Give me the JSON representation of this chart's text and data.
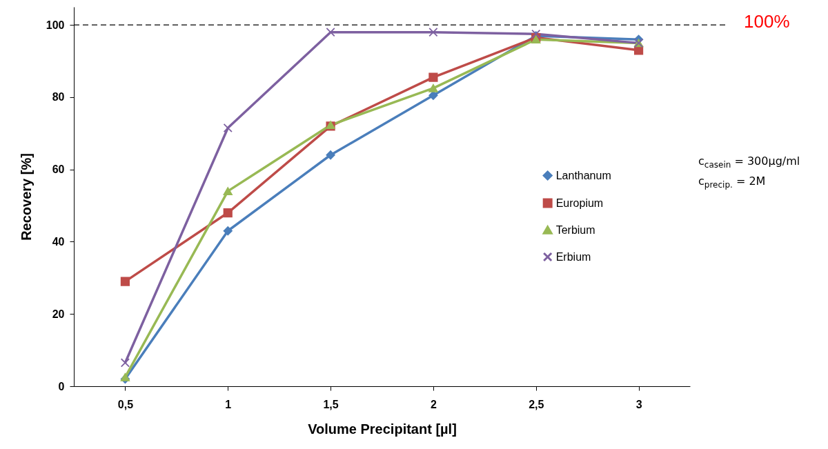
{
  "chart_data": {
    "type": "line",
    "xlabel": "Volume Precipitant [µl]",
    "ylabel": "Recovery [%]",
    "categories": [
      "0,5",
      "1",
      "1,5",
      "2",
      "2,5",
      "3"
    ],
    "series": [
      {
        "name": "Lanthanum",
        "color": "#4a7ebb",
        "marker": "diamond",
        "values": [
          2,
          43,
          64,
          80.5,
          97,
          96
        ]
      },
      {
        "name": "Europium",
        "color": "#be4b48",
        "marker": "square",
        "values": [
          29,
          48,
          72,
          85.5,
          96.5,
          93
        ]
      },
      {
        "name": "Terbium",
        "color": "#98b954",
        "marker": "triangle",
        "values": [
          2.5,
          54,
          72.3,
          82.5,
          96,
          95
        ]
      },
      {
        "name": "Erbium",
        "color": "#7d60a0",
        "marker": "cross",
        "values": [
          6.5,
          71.5,
          98,
          98,
          97.5,
          95
        ]
      }
    ],
    "ylim": [
      0,
      105
    ],
    "yticks": [
      0,
      20,
      40,
      60,
      80,
      100
    ],
    "grid": false,
    "legend": "right",
    "line_style": "solid",
    "ref_lines": [
      {
        "axis": "y",
        "value": 100,
        "label": "100%",
        "color": "#000000",
        "line_style": "dashed"
      }
    ],
    "annotations": [
      "c$_{casein}$ = 300µg/ml",
      "c$_{precip.}$ = 2M"
    ]
  }
}
